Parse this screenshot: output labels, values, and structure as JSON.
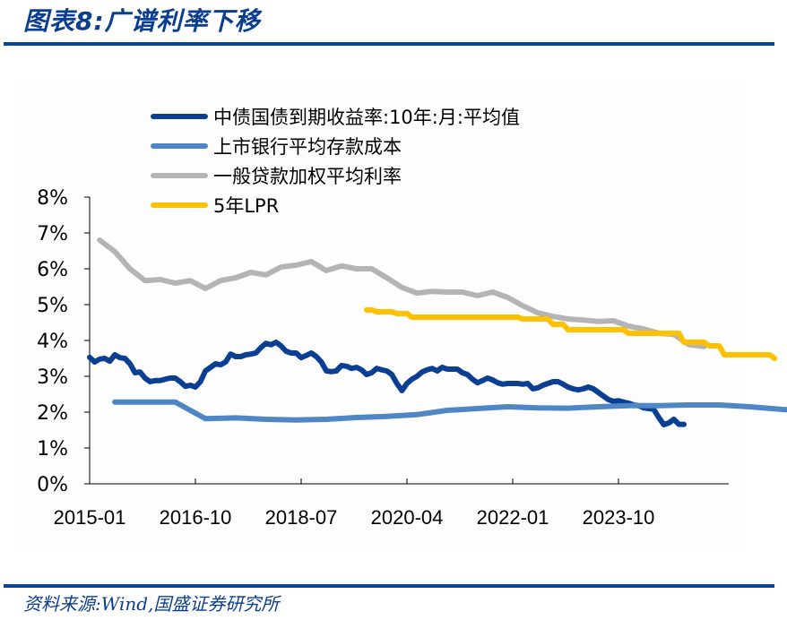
{
  "title": "图表8:广谱利率下移",
  "source": "资料来源:Wind,国盛证券研究所",
  "colors": {
    "brand": "#0b4596",
    "bond": "#0b3f94",
    "deposit": "#4f86c6",
    "loan": "#b4b4b4",
    "lpr": "#ffc000"
  },
  "legend": [
    {
      "label": "中债国债到期收益率:10年:月:平均值",
      "color": "#0b3f94"
    },
    {
      "label": "上市银行平均存款成本",
      "color": "#4f86c6"
    },
    {
      "label": "一般贷款加权平均利率",
      "color": "#b4b4b4"
    },
    {
      "label": "5年LPR",
      "color": "#ffc000"
    }
  ],
  "chart_data": {
    "type": "line",
    "title": "广谱利率下移",
    "xlabel": "",
    "ylabel": "",
    "ylim": [
      0,
      8
    ],
    "yticks": [
      "0%",
      "1%",
      "2%",
      "3%",
      "4%",
      "5%",
      "6%",
      "7%",
      "8%"
    ],
    "xticks": [
      "2015-01",
      "2016-10",
      "2018-07",
      "2020-04",
      "2022-01",
      "2023-10"
    ],
    "x_start": "2015-01",
    "x_end": "2025-08",
    "grid": false,
    "legend_position": "top-center",
    "series": [
      {
        "name": "中债国债到期收益率:10年:月:平均值",
        "frequency": "monthly",
        "start": "2015-01",
        "values": [
          3.53,
          3.4,
          3.48,
          3.5,
          3.42,
          3.6,
          3.52,
          3.5,
          3.35,
          3.1,
          3.12,
          2.95,
          2.85,
          2.88,
          2.88,
          2.92,
          2.95,
          2.95,
          2.85,
          2.72,
          2.75,
          2.7,
          2.85,
          3.15,
          3.25,
          3.35,
          3.32,
          3.4,
          3.62,
          3.55,
          3.55,
          3.6,
          3.62,
          3.65,
          3.8,
          3.92,
          3.88,
          3.95,
          3.85,
          3.7,
          3.65,
          3.65,
          3.52,
          3.58,
          3.65,
          3.55,
          3.4,
          3.15,
          3.13,
          3.15,
          3.3,
          3.28,
          3.22,
          3.25,
          3.18,
          3.05,
          3.1,
          3.22,
          3.18,
          3.15,
          3.05,
          2.8,
          2.6,
          2.8,
          2.92,
          3.0,
          3.12,
          3.18,
          3.22,
          3.15,
          3.25,
          3.2,
          3.2,
          3.2,
          3.1,
          3.05,
          2.92,
          2.82,
          2.88,
          2.95,
          2.9,
          2.82,
          2.78,
          2.8,
          2.8,
          2.8,
          2.78,
          2.8,
          2.65,
          2.68,
          2.75,
          2.8,
          2.85,
          2.85,
          2.78,
          2.7,
          2.65,
          2.62,
          2.65,
          2.7,
          2.65,
          2.55,
          2.45,
          2.35,
          2.3,
          2.32,
          2.28,
          2.25,
          2.2,
          2.18,
          2.12,
          2.1,
          2.08,
          1.85,
          1.65,
          1.7,
          1.8,
          1.66,
          1.66
        ],
        "color": "#0b3f94"
      },
      {
        "name": "上市银行平均存款成本",
        "frequency": "semiannual",
        "start": "2015-06",
        "values": [
          2.28,
          2.28,
          2.28,
          1.82,
          1.84,
          1.8,
          1.78,
          1.8,
          1.85,
          1.88,
          1.93,
          2.05,
          2.1,
          2.15,
          2.12,
          2.11,
          2.15,
          2.18,
          2.18,
          2.2,
          2.2,
          2.15,
          2.08,
          2.02
        ],
        "color": "#4f86c6"
      },
      {
        "name": "一般贷款加权平均利率",
        "frequency": "quarterly",
        "start": "2015-03",
        "values": [
          6.8,
          6.48,
          6.0,
          5.67,
          5.7,
          5.6,
          5.67,
          5.45,
          5.67,
          5.75,
          5.9,
          5.83,
          6.05,
          6.1,
          6.2,
          5.95,
          6.08,
          6.0,
          6.0,
          5.75,
          5.48,
          5.32,
          5.37,
          5.35,
          5.35,
          5.25,
          5.35,
          5.2,
          4.97,
          4.77,
          4.67,
          4.6,
          4.57,
          4.53,
          4.55,
          4.4,
          4.32,
          4.2,
          4.17,
          3.88,
          3.83
        ],
        "color": "#b4b4b4"
      },
      {
        "name": "5年LPR",
        "frequency": "monthly",
        "start": "2019-08",
        "values": [
          4.85,
          4.85,
          4.8,
          4.8,
          4.8,
          4.8,
          4.75,
          4.75,
          4.75,
          4.65,
          4.65,
          4.65,
          4.65,
          4.65,
          4.65,
          4.65,
          4.65,
          4.65,
          4.65,
          4.65,
          4.65,
          4.65,
          4.65,
          4.65,
          4.65,
          4.65,
          4.65,
          4.65,
          4.65,
          4.65,
          4.65,
          4.6,
          4.6,
          4.6,
          4.6,
          4.6,
          4.6,
          4.45,
          4.45,
          4.45,
          4.3,
          4.3,
          4.3,
          4.3,
          4.3,
          4.3,
          4.3,
          4.3,
          4.3,
          4.3,
          4.3,
          4.3,
          4.2,
          4.2,
          4.2,
          4.2,
          4.2,
          4.2,
          4.2,
          4.2,
          4.2,
          4.2,
          4.2,
          3.95,
          3.95,
          3.95,
          3.95,
          3.95,
          3.85,
          3.85,
          3.85,
          3.6,
          3.6,
          3.6,
          3.6,
          3.6,
          3.6,
          3.6,
          3.6,
          3.6,
          3.6,
          3.5
        ],
        "color": "#ffc000"
      }
    ]
  }
}
